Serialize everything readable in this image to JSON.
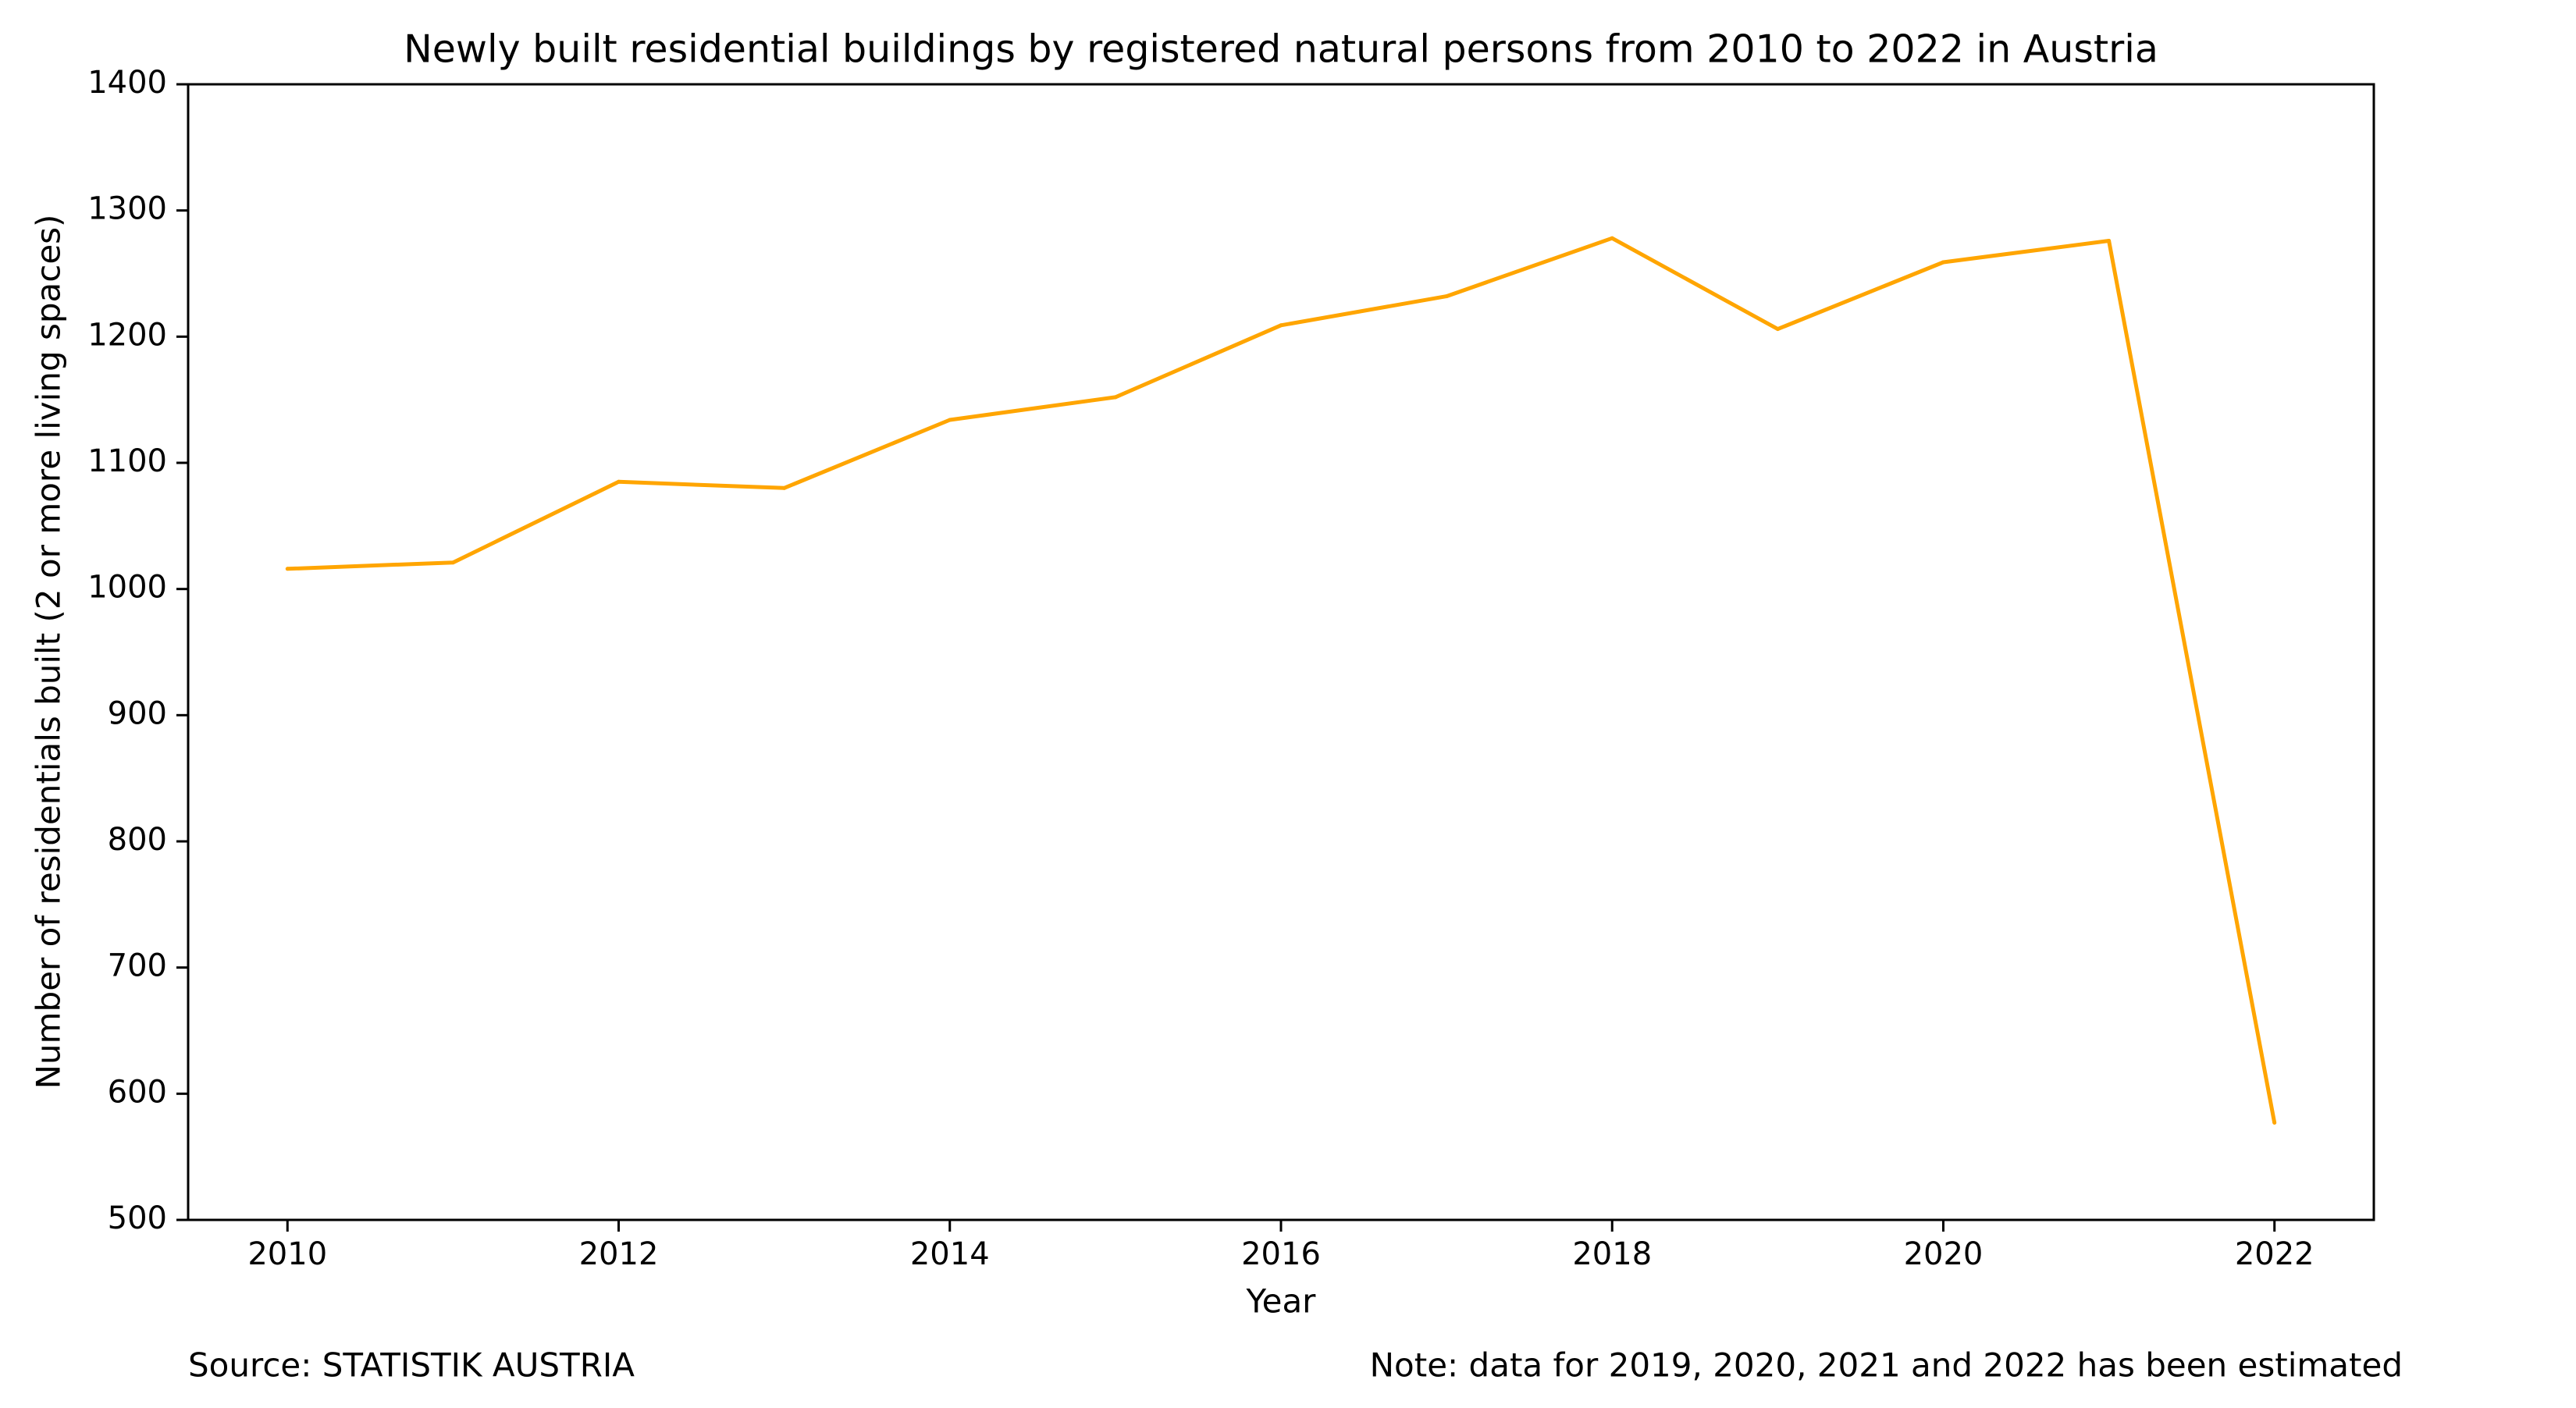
{
  "chart_data": {
    "type": "line",
    "title": "Newly built residential buildings by registered natural persons from 2010 to 2022 in Austria",
    "xlabel": "Year",
    "ylabel": "Number of residentials built (2 or more living spaces)",
    "x": [
      2010,
      2011,
      2012,
      2013,
      2014,
      2015,
      2016,
      2017,
      2018,
      2019,
      2020,
      2021,
      2022
    ],
    "series": [
      {
        "values": [
          1016,
          1021,
          1085,
          1080,
          1134,
          1152,
          1209,
          1232,
          1278,
          1206,
          1259,
          1276,
          577
        ],
        "color": "#FFA500"
      }
    ],
    "xticks": [
      2010,
      2012,
      2014,
      2016,
      2018,
      2020,
      2022
    ],
    "yticks": [
      500,
      600,
      700,
      800,
      900,
      1000,
      1100,
      1200,
      1300,
      1400
    ],
    "xlim": [
      2009.4,
      2022.6
    ],
    "ylim": [
      500,
      1400
    ],
    "grid": false,
    "legend": false
  },
  "footer": {
    "source": "Source: STATISTIK AUSTRIA",
    "note": "Note: data for 2019, 2020, 2021 and 2022 has been estimated"
  }
}
